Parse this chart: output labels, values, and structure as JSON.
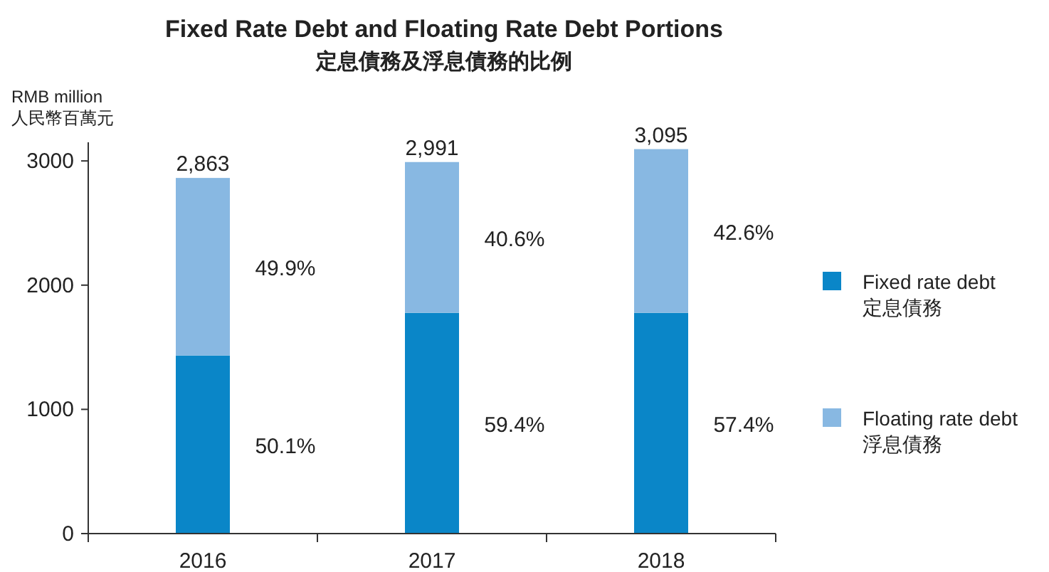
{
  "chart_data": {
    "type": "bar",
    "title": "Fixed Rate Debt and Floating Rate Debt Portions",
    "subtitle": "定息債務及浮息債務的比例",
    "ylabel": "RMB million\n人民幣百萬元",
    "categories": [
      "2016",
      "2017",
      "2018"
    ],
    "stacked": true,
    "ylim": [
      0,
      3150
    ],
    "yticks": [
      0,
      1000,
      2000,
      3000
    ],
    "legend": "right",
    "series": [
      {
        "name": "Fixed rate debt\n定息債務",
        "color": "#0a86c8",
        "values": [
          1434,
          1777,
          1777
        ]
      },
      {
        "name": "Floating rate debt\n浮息債務",
        "color": "#88b8e2",
        "values": [
          1429,
          1214,
          1318
        ]
      }
    ],
    "totals": [
      "2,863",
      "2,991",
      "3,095"
    ],
    "annotations": [
      "50.1%",
      "49.9%",
      "59.4%",
      "40.6%",
      "57.4%",
      "42.6%"
    ]
  }
}
